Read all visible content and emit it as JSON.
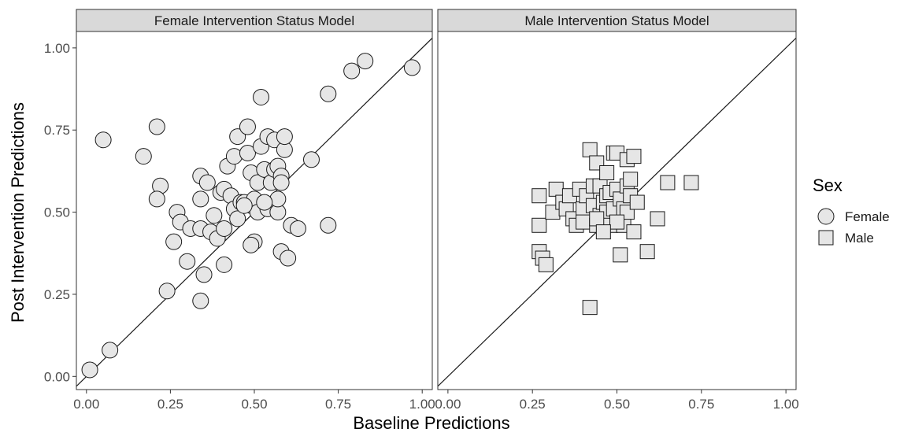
{
  "chart_data": {
    "type": "scatter",
    "xlabel": "Baseline Predictions",
    "ylabel": "Post Intervention Predictions",
    "xlim": [
      -0.03,
      1.03
    ],
    "ylim": [
      -0.04,
      1.05
    ],
    "xticks": [
      "0.00",
      "0.25",
      "0.50",
      "0.75",
      "1.00"
    ],
    "yticks": [
      "0.00",
      "0.25",
      "0.50",
      "0.75",
      "1.00"
    ],
    "grid": false,
    "reference_line": "y = x",
    "legend": {
      "title": "Sex",
      "position": "right",
      "entries": [
        {
          "label": "Female",
          "shape": "circle"
        },
        {
          "label": "Male",
          "shape": "square"
        }
      ]
    },
    "point_fill": "#e6e6e6",
    "point_stroke": "#1a1a1a",
    "strip_fill": "#d9d9d9",
    "panels": [
      {
        "title": "Female Intervention Status Model",
        "shape": "circle",
        "series_label": "Female",
        "points": [
          [
            0.01,
            0.02
          ],
          [
            0.07,
            0.08
          ],
          [
            0.05,
            0.72
          ],
          [
            0.17,
            0.67
          ],
          [
            0.21,
            0.76
          ],
          [
            0.22,
            0.58
          ],
          [
            0.21,
            0.54
          ],
          [
            0.24,
            0.26
          ],
          [
            0.26,
            0.41
          ],
          [
            0.27,
            0.5
          ],
          [
            0.28,
            0.47
          ],
          [
            0.3,
            0.35
          ],
          [
            0.31,
            0.45
          ],
          [
            0.34,
            0.45
          ],
          [
            0.34,
            0.61
          ],
          [
            0.34,
            0.54
          ],
          [
            0.34,
            0.23
          ],
          [
            0.35,
            0.31
          ],
          [
            0.36,
            0.59
          ],
          [
            0.37,
            0.44
          ],
          [
            0.38,
            0.49
          ],
          [
            0.39,
            0.42
          ],
          [
            0.4,
            0.56
          ],
          [
            0.41,
            0.57
          ],
          [
            0.41,
            0.34
          ],
          [
            0.41,
            0.45
          ],
          [
            0.42,
            0.64
          ],
          [
            0.43,
            0.55
          ],
          [
            0.44,
            0.67
          ],
          [
            0.44,
            0.51
          ],
          [
            0.45,
            0.73
          ],
          [
            0.45,
            0.48
          ],
          [
            0.46,
            0.53
          ],
          [
            0.47,
            0.53
          ],
          [
            0.48,
            0.68
          ],
          [
            0.48,
            0.76
          ],
          [
            0.49,
            0.62
          ],
          [
            0.49,
            0.52
          ],
          [
            0.5,
            0.41
          ],
          [
            0.49,
            0.4
          ],
          [
            0.5,
            0.54
          ],
          [
            0.51,
            0.5
          ],
          [
            0.51,
            0.59
          ],
          [
            0.52,
            0.7
          ],
          [
            0.52,
            0.85
          ],
          [
            0.53,
            0.63
          ],
          [
            0.54,
            0.73
          ],
          [
            0.54,
            0.51
          ],
          [
            0.55,
            0.59
          ],
          [
            0.56,
            0.63
          ],
          [
            0.56,
            0.72
          ],
          [
            0.57,
            0.5
          ],
          [
            0.57,
            0.54
          ],
          [
            0.57,
            0.64
          ],
          [
            0.58,
            0.61
          ],
          [
            0.58,
            0.59
          ],
          [
            0.59,
            0.69
          ],
          [
            0.58,
            0.38
          ],
          [
            0.59,
            0.73
          ],
          [
            0.6,
            0.36
          ],
          [
            0.61,
            0.46
          ],
          [
            0.63,
            0.45
          ],
          [
            0.67,
            0.66
          ],
          [
            0.72,
            0.46
          ],
          [
            0.72,
            0.86
          ],
          [
            0.79,
            0.93
          ],
          [
            0.83,
            0.96
          ],
          [
            0.97,
            0.94
          ],
          [
            0.47,
            0.52
          ],
          [
            0.53,
            0.53
          ]
        ]
      },
      {
        "title": "Male Intervention Status Model",
        "shape": "square",
        "series_label": "Male",
        "points": [
          [
            0.27,
            0.55
          ],
          [
            0.27,
            0.46
          ],
          [
            0.27,
            0.38
          ],
          [
            0.28,
            0.36
          ],
          [
            0.29,
            0.34
          ],
          [
            0.31,
            0.5
          ],
          [
            0.32,
            0.57
          ],
          [
            0.34,
            0.53
          ],
          [
            0.35,
            0.51
          ],
          [
            0.36,
            0.55
          ],
          [
            0.37,
            0.48
          ],
          [
            0.38,
            0.46
          ],
          [
            0.39,
            0.57
          ],
          [
            0.4,
            0.51
          ],
          [
            0.4,
            0.47
          ],
          [
            0.41,
            0.55
          ],
          [
            0.42,
            0.69
          ],
          [
            0.42,
            0.21
          ],
          [
            0.43,
            0.52
          ],
          [
            0.43,
            0.58
          ],
          [
            0.44,
            0.65
          ],
          [
            0.44,
            0.46
          ],
          [
            0.45,
            0.49
          ],
          [
            0.45,
            0.58
          ],
          [
            0.46,
            0.53
          ],
          [
            0.47,
            0.62
          ],
          [
            0.47,
            0.55
          ],
          [
            0.47,
            0.5
          ],
          [
            0.48,
            0.46
          ],
          [
            0.48,
            0.56
          ],
          [
            0.49,
            0.68
          ],
          [
            0.49,
            0.51
          ],
          [
            0.5,
            0.57
          ],
          [
            0.5,
            0.68
          ],
          [
            0.51,
            0.37
          ],
          [
            0.51,
            0.54
          ],
          [
            0.52,
            0.46
          ],
          [
            0.52,
            0.51
          ],
          [
            0.53,
            0.66
          ],
          [
            0.53,
            0.58
          ],
          [
            0.53,
            0.5
          ],
          [
            0.54,
            0.6
          ],
          [
            0.54,
            0.55
          ],
          [
            0.55,
            0.67
          ],
          [
            0.55,
            0.44
          ],
          [
            0.56,
            0.53
          ],
          [
            0.59,
            0.38
          ],
          [
            0.62,
            0.48
          ],
          [
            0.65,
            0.59
          ],
          [
            0.72,
            0.59
          ],
          [
            0.44,
            0.48
          ],
          [
            0.5,
            0.47
          ],
          [
            0.46,
            0.44
          ]
        ]
      }
    ]
  }
}
